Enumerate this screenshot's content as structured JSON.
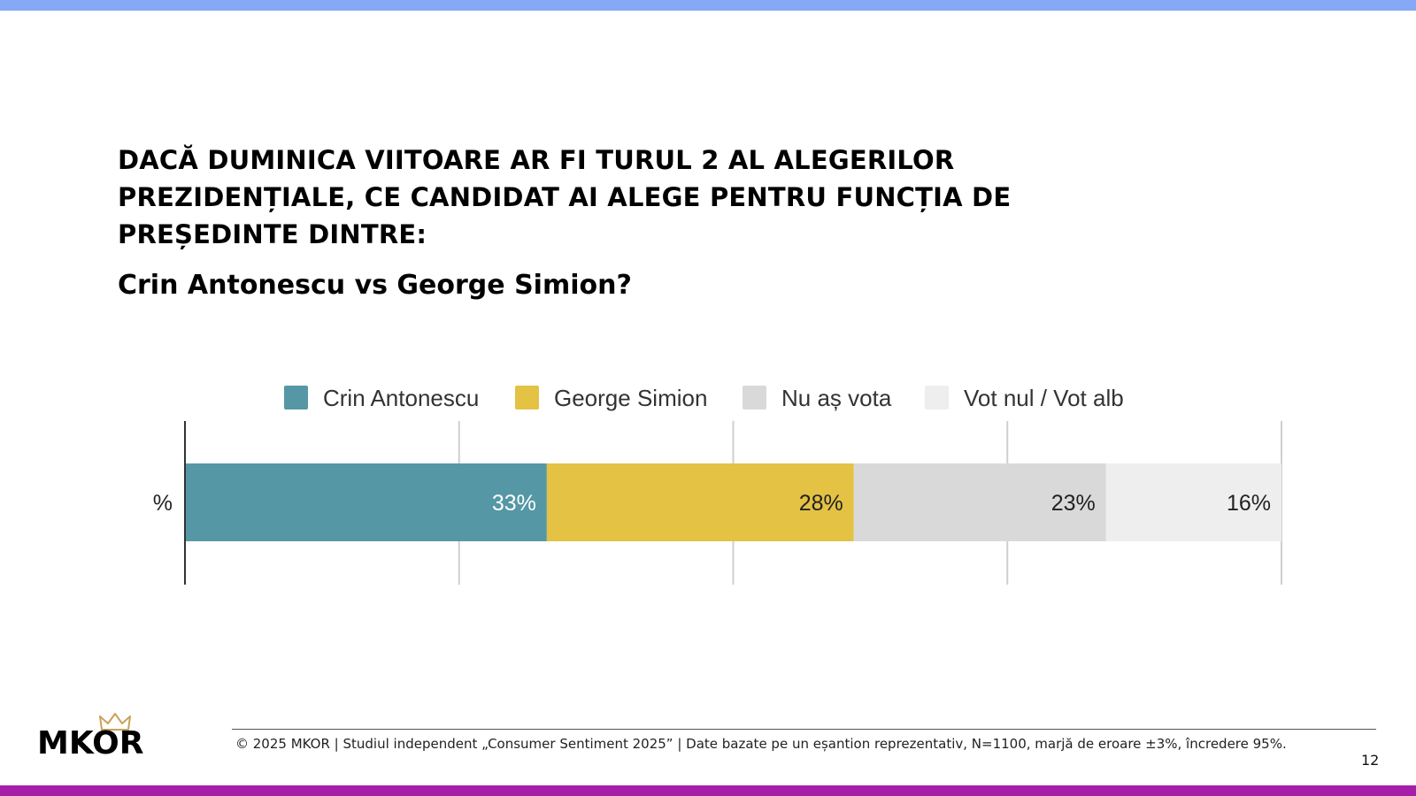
{
  "question": "DACĂ DUMINICA VIITOARE AR FI TURUL 2 AL ALEGERILOR PREZIDENȚIALE, CE CANDIDAT AI ALEGE PENTRU FUNCȚIA DE PREȘEDINTE DINTRE:",
  "subtitle": "Crin Antonescu vs George Simion?",
  "chart_data": {
    "type": "bar",
    "orientation": "horizontal",
    "stacked": true,
    "categories": [
      "%"
    ],
    "series": [
      {
        "name": "Crin Antonescu",
        "values": [
          33
        ],
        "label": "33%",
        "color": "#5597a5"
      },
      {
        "name": "George Simion",
        "values": [
          28
        ],
        "label": "28%",
        "color": "#e3c244"
      },
      {
        "name": "Nu aș vota",
        "values": [
          23
        ],
        "label": "23%",
        "color": "#d9d9d9"
      },
      {
        "name": "Vot nul / Vot alb",
        "values": [
          16
        ],
        "label": "16%",
        "color": "#eeeeee"
      }
    ],
    "xlim": [
      0,
      100
    ],
    "grid": true,
    "legend_position": "top"
  },
  "footer": {
    "logo": "MKOR",
    "text": "© 2025 MKOR | Studiul independent „Consumer Sentiment 2025” | Date bazate pe un eșantion reprezentativ, N=1100, marjă de eroare ±3%, încredere 95%.",
    "page_number": "12"
  },
  "colors": {
    "top_bar": "#85a8f7",
    "bottom_bar": "#a51ea8"
  }
}
